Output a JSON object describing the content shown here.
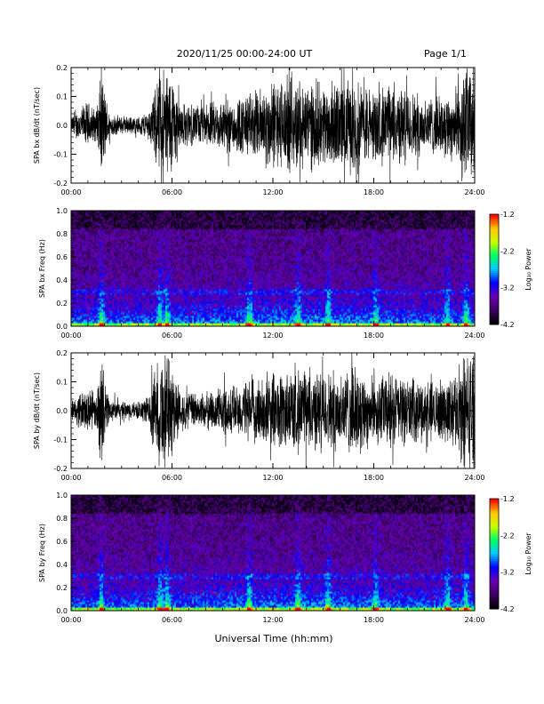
{
  "header": {
    "title": "2020/11/25  00:00-24:00 UT",
    "page": "Page 1/1"
  },
  "xlabel": "Universal Time (hh:mm)",
  "chart_data": [
    {
      "type": "line",
      "ylabel": "SPA bx dB/dt (nT/sec)",
      "xlim": [
        0,
        24
      ],
      "ylim": [
        -0.2,
        0.2
      ],
      "x_ticks": [
        "00:00",
        "06:00",
        "12:00",
        "18:00",
        "24:00"
      ],
      "y_ticks": [
        "-0.2",
        "-0.1",
        "0.0",
        "0.1",
        "0.2"
      ],
      "series_color": "#000000",
      "envelope": {
        "hours": [
          0,
          0.5,
          1,
          1.5,
          1.8,
          2,
          2.3,
          3,
          4,
          4.6,
          5,
          5.3,
          5.6,
          6,
          6.5,
          7,
          8,
          9,
          10,
          11,
          12,
          13,
          14,
          15,
          16,
          17,
          18,
          19,
          20,
          21,
          22,
          23,
          23.3,
          23.6,
          24
        ],
        "amplitude": [
          0.03,
          0.06,
          0.08,
          0.05,
          0.2,
          0.12,
          0.04,
          0.03,
          0.03,
          0.05,
          0.12,
          0.2,
          0.2,
          0.18,
          0.08,
          0.07,
          0.07,
          0.09,
          0.1,
          0.12,
          0.15,
          0.16,
          0.15,
          0.14,
          0.15,
          0.16,
          0.12,
          0.14,
          0.12,
          0.1,
          0.1,
          0.13,
          0.2,
          0.2,
          0.2
        ]
      }
    },
    {
      "type": "heatmap",
      "ylabel": "SPA bx Freq (Hz)",
      "xlim": [
        0,
        24
      ],
      "ylim": [
        0.0,
        1.0
      ],
      "x_ticks": [
        "00:00",
        "06:00",
        "12:00",
        "18:00",
        "24:00"
      ],
      "y_ticks": [
        "0.0",
        "0.2",
        "0.4",
        "0.6",
        "0.8",
        "1.0"
      ],
      "colorbar": {
        "label": "Log₁₀ Power",
        "range": [
          -4.2,
          -1.2
        ],
        "ticks": [
          "-1.2",
          "-2.2",
          "-3.2",
          "-4.2"
        ]
      },
      "colorscale": [
        "#000000",
        "#3c0064",
        "#6a00b0",
        "#0000ff",
        "#00c8ff",
        "#00ff64",
        "#c8ff00",
        "#ffc800",
        "#ff0000"
      ],
      "bursts_hours": [
        1.8,
        5.3,
        5.7,
        10.6,
        13.5,
        15.3,
        18.1,
        22.4,
        23.5
      ]
    },
    {
      "type": "line",
      "ylabel": "SPA by dB/dt (nT/sec)",
      "xlim": [
        0,
        24
      ],
      "ylim": [
        -0.2,
        0.2
      ],
      "x_ticks": [
        "00:00",
        "06:00",
        "12:00",
        "18:00",
        "24:00"
      ],
      "y_ticks": [
        "-0.2",
        "-0.1",
        "0.0",
        "0.1",
        "0.2"
      ],
      "series_color": "#000000",
      "envelope": {
        "hours": [
          0,
          0.5,
          1,
          1.5,
          1.8,
          2,
          2.3,
          3,
          4,
          4.6,
          5,
          5.3,
          5.6,
          6,
          6.5,
          7,
          8,
          9,
          10,
          11,
          12,
          13,
          14,
          15,
          16,
          17,
          18,
          19,
          20,
          21,
          22,
          23,
          23.3,
          23.6,
          24
        ],
        "amplitude": [
          0.03,
          0.06,
          0.08,
          0.05,
          0.2,
          0.1,
          0.04,
          0.03,
          0.03,
          0.05,
          0.14,
          0.2,
          0.2,
          0.16,
          0.07,
          0.06,
          0.06,
          0.08,
          0.09,
          0.11,
          0.13,
          0.14,
          0.14,
          0.13,
          0.14,
          0.15,
          0.11,
          0.13,
          0.11,
          0.1,
          0.1,
          0.13,
          0.2,
          0.2,
          0.2
        ]
      }
    },
    {
      "type": "heatmap",
      "ylabel": "SPA by Freq (Hz)",
      "xlim": [
        0,
        24
      ],
      "ylim": [
        0.0,
        1.0
      ],
      "x_ticks": [
        "00:00",
        "06:00",
        "12:00",
        "18:00",
        "24:00"
      ],
      "y_ticks": [
        "0.0",
        "0.2",
        "0.4",
        "0.6",
        "0.8",
        "1.0"
      ],
      "colorbar": {
        "label": "Log₁₀ Power",
        "range": [
          -4.2,
          -1.2
        ],
        "ticks": [
          "-1.2",
          "-2.2",
          "-3.2",
          "-4.2"
        ]
      },
      "colorscale": [
        "#000000",
        "#3c0064",
        "#6a00b0",
        "#0000ff",
        "#00c8ff",
        "#00ff64",
        "#c8ff00",
        "#ffc800",
        "#ff0000"
      ],
      "bursts_hours": [
        1.8,
        5.3,
        5.7,
        10.6,
        13.5,
        15.3,
        18.1,
        22.4,
        23.5
      ]
    }
  ]
}
